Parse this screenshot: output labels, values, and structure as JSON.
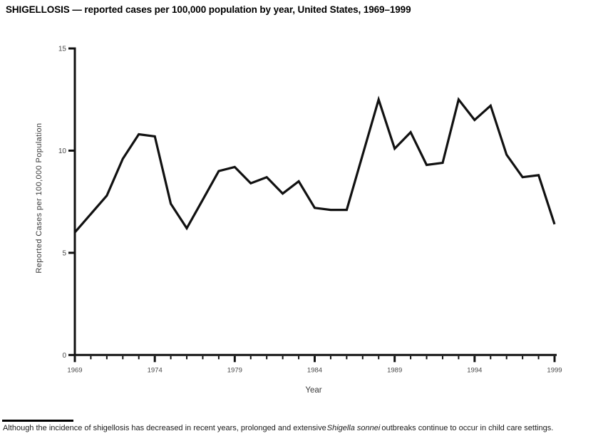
{
  "title": "SHIGELLOSIS — reported cases per 100,000 population by year, United States, 1969–1999",
  "chart_data": {
    "type": "line",
    "title": "SHIGELLOSIS — reported cases per 100,000 population by year, United States, 1969–1999",
    "x": [
      1969,
      1970,
      1971,
      1972,
      1973,
      1974,
      1975,
      1976,
      1977,
      1978,
      1979,
      1980,
      1981,
      1982,
      1983,
      1984,
      1985,
      1986,
      1987,
      1988,
      1989,
      1990,
      1991,
      1992,
      1993,
      1994,
      1995,
      1996,
      1997,
      1998,
      1999
    ],
    "series": [
      {
        "name": "Reported cases per 100,000 population",
        "values": [
          6.0,
          6.9,
          7.8,
          9.6,
          10.8,
          10.7,
          7.4,
          6.2,
          7.6,
          9.0,
          9.2,
          8.4,
          8.7,
          7.9,
          8.5,
          7.2,
          7.1,
          7.1,
          9.8,
          12.5,
          10.1,
          10.9,
          9.3,
          9.4,
          12.5,
          11.5,
          12.2,
          9.8,
          8.7,
          8.8,
          6.4
        ]
      }
    ],
    "xlabel": "Year",
    "ylabel": "Reported Cases per 100,000 Population",
    "ylim": [
      0,
      15
    ],
    "xlim": [
      1969,
      1999
    ],
    "yticks": [
      0,
      5,
      10,
      15
    ],
    "xticks_labeled": [
      1969,
      1974,
      1979,
      1984,
      1989,
      1994,
      1999
    ],
    "xticks_minor_every": 1,
    "grid": false,
    "legend": "none",
    "line_color": "#111111",
    "axis_color": "#111111",
    "tick_label_color": "#4a4a4a"
  },
  "footnote": {
    "text_before": "Although the incidence of shigellosis has decreased in recent years, prolonged and extensive",
    "italic_species": "Shigella  sonnei",
    "text_after": "outbreaks continue to occur in child care settings."
  }
}
